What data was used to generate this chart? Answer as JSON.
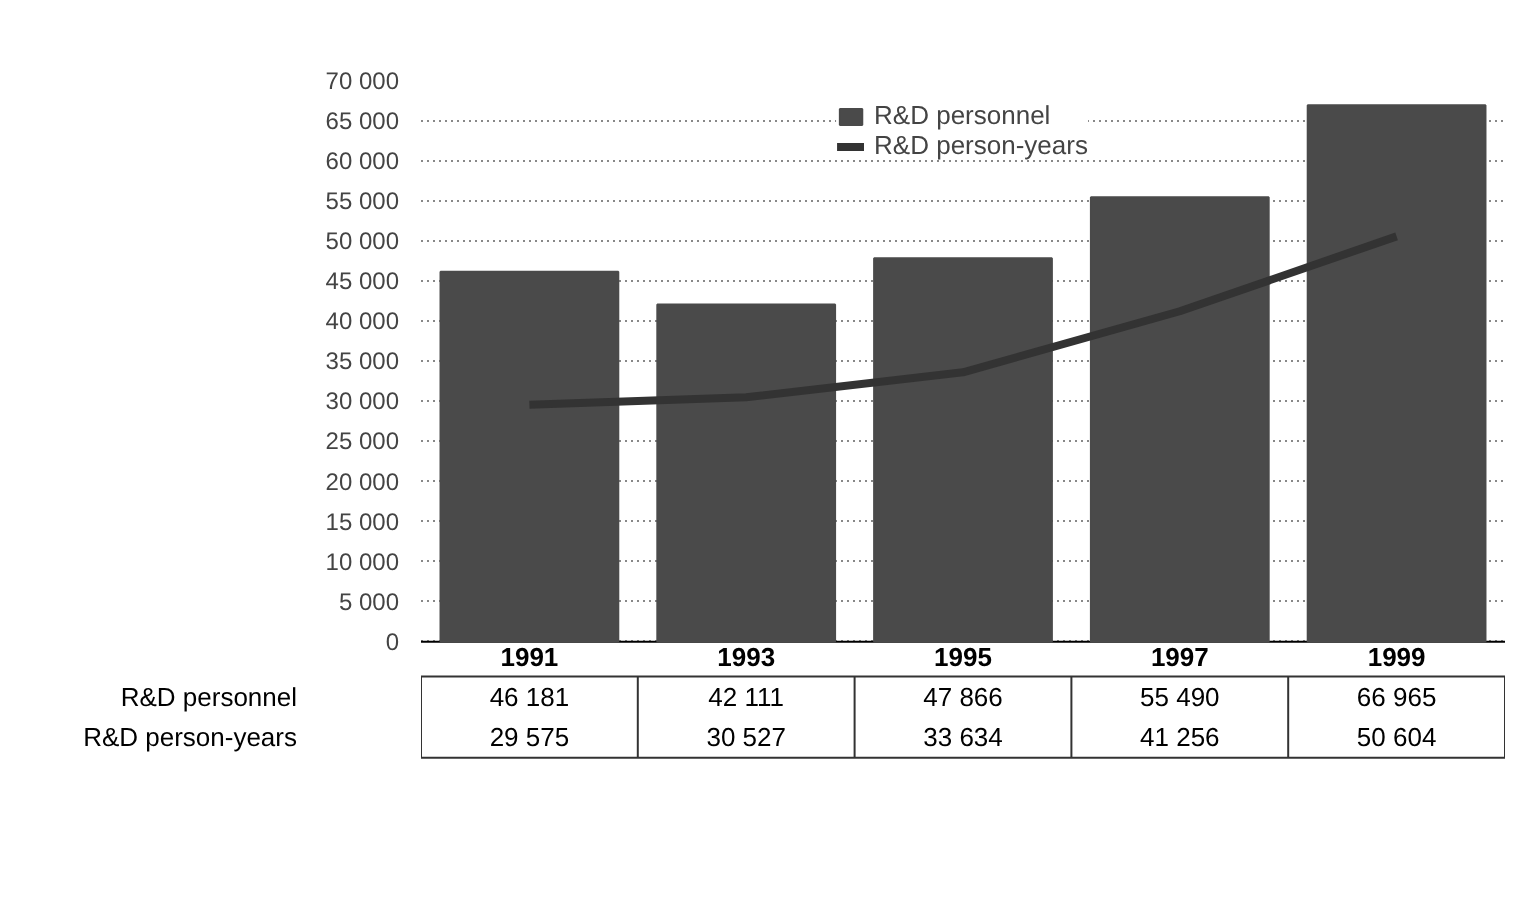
{
  "chart_data": {
    "type": "bar",
    "categories": [
      "1991",
      "1993",
      "1995",
      "1997",
      "1999"
    ],
    "series": [
      {
        "name": "R&D personnel",
        "color": "#4a4a4a",
        "values": [
          46181,
          42111,
          47866,
          55490,
          66965
        ],
        "value_labels": [
          "46 181",
          "42 111",
          "47 866",
          "55 490",
          "66 965"
        ]
      },
      {
        "name": "R&D person-years",
        "type": "line",
        "color": "#333333",
        "values": [
          29575,
          30527,
          33634,
          41256,
          50604
        ],
        "value_labels": [
          "29 575",
          "30 527",
          "33 634",
          "41 256",
          "50 604"
        ]
      }
    ],
    "ylim": [
      0,
      70000
    ],
    "yticks": [
      0,
      {
        "value": 5000,
        "label": "5 000"
      },
      {
        "value": 10000,
        "label": "10 000"
      },
      {
        "value": 15000,
        "label": "15 000"
      },
      {
        "value": 20000,
        "label": "20 000"
      },
      {
        "value": 25000,
        "label": "25 000"
      },
      {
        "value": 30000,
        "label": "30 000"
      },
      {
        "value": 35000,
        "label": "35 000"
      },
      {
        "value": 40000,
        "label": "40 000"
      },
      {
        "value": 45000,
        "label": "45 000"
      },
      {
        "value": 50000,
        "label": "50 000"
      },
      {
        "value": 55000,
        "label": "55 000"
      },
      {
        "value": 60000,
        "label": "60 000"
      },
      {
        "value": 65000,
        "label": "65 000"
      },
      {
        "value": 70000,
        "label": "70 000"
      }
    ],
    "grid": "y",
    "legend": "top",
    "line_style": "solid",
    "marker": "none"
  }
}
